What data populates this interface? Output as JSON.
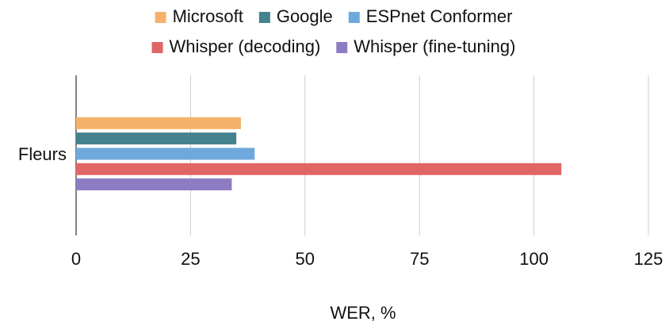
{
  "chart_data": {
    "type": "bar",
    "orientation": "horizontal",
    "categories": [
      "Fleurs"
    ],
    "series": [
      {
        "name": "Microsoft",
        "color": "#f6b26b",
        "values": [
          36
        ]
      },
      {
        "name": "Google",
        "color": "#45818e",
        "values": [
          35
        ]
      },
      {
        "name": "ESPnet Conformer",
        "color": "#6fa8dc",
        "values": [
          39
        ]
      },
      {
        "name": "Whisper (decoding)",
        "color": "#e06666",
        "values": [
          106
        ]
      },
      {
        "name": "Whisper (fine-tuning)",
        "color": "#8e7cc3",
        "values": [
          34
        ]
      }
    ],
    "x_label": "WER, %",
    "xlim": [
      0,
      125
    ],
    "xticks": [
      0,
      25,
      50,
      75,
      100,
      125
    ],
    "grid": true,
    "legend": "top"
  }
}
